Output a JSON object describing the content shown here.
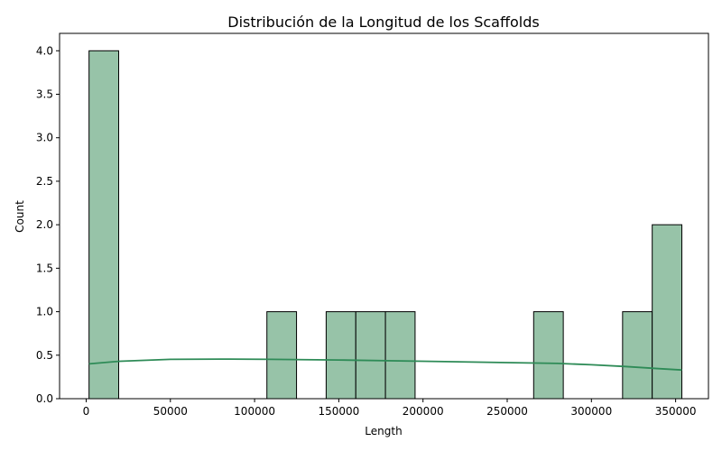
{
  "chart_data": {
    "type": "bar",
    "title": "Distribución de la Longitud de los Scaffolds",
    "xlabel": "Length",
    "ylabel": "Count",
    "xlim": [
      -15800,
      369500
    ],
    "ylim": [
      0,
      4.2
    ],
    "x_ticks": [
      0,
      50000,
      100000,
      150000,
      200000,
      250000,
      300000,
      350000
    ],
    "y_ticks": [
      0.0,
      0.5,
      1.0,
      1.5,
      2.0,
      2.5,
      3.0,
      3.5,
      4.0
    ],
    "bins": {
      "start": 1700,
      "width": 17600,
      "counts": [
        4,
        0,
        0,
        0,
        0,
        0,
        1,
        0,
        1,
        1,
        1,
        0,
        0,
        0,
        0,
        1,
        0,
        0,
        1,
        2
      ]
    },
    "kde": {
      "x": [
        1700,
        20000,
        50000,
        80000,
        110000,
        150000,
        200000,
        250000,
        280000,
        300000,
        320000,
        340000,
        353700
      ],
      "y": [
        0.4,
        0.43,
        0.452,
        0.455,
        0.452,
        0.445,
        0.43,
        0.415,
        0.405,
        0.39,
        0.37,
        0.345,
        0.33
      ]
    },
    "colors": {
      "bar_fill": "#97c3a8",
      "bar_edge": "#000000",
      "kde_line": "#2e8b57"
    },
    "grid": false,
    "legend": false
  }
}
